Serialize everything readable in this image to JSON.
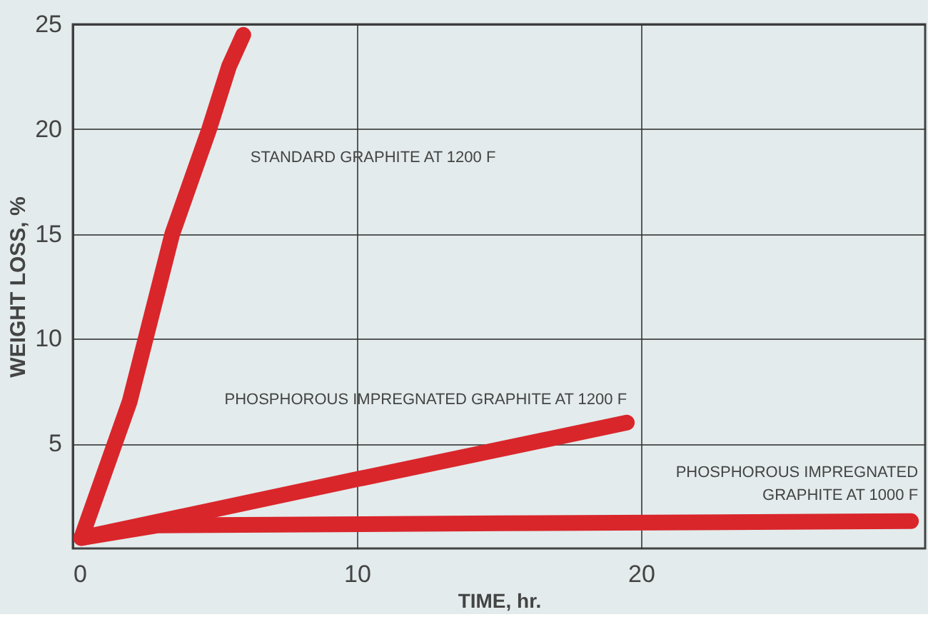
{
  "chart_data": {
    "type": "line",
    "xlabel": "TIME, hr.",
    "ylabel": "WEIGHT LOSS, %",
    "xlim": [
      0,
      30
    ],
    "ylim": [
      0,
      25
    ],
    "xticks": [
      0,
      10,
      20
    ],
    "yticks": [
      5,
      10,
      15,
      20,
      25
    ],
    "grid": true,
    "marker": "none",
    "line_style": "solid",
    "series": [
      {
        "name": "STANDARD GRAPHITE AT 1200 F",
        "color": "#d9262b",
        "x": [
          0.3,
          2,
          3.5,
          4.8,
          5.5,
          6
        ],
        "values": [
          0.5,
          7,
          15,
          20,
          23,
          24.5
        ]
      },
      {
        "name": "PHOSPHOROUS IMPREGNATED  GRAPHITE AT 1200 F",
        "color": "#d9262b",
        "x": [
          0.3,
          10,
          19.5
        ],
        "values": [
          0.5,
          3.3,
          6
        ]
      },
      {
        "name": "PHOSPHOROUS IMPREGNATED\nGRAPHITE AT 1000 F",
        "color": "#d9262b",
        "x": [
          0.3,
          3,
          15,
          29.5
        ],
        "values": [
          0.5,
          1.1,
          1.2,
          1.3
        ]
      }
    ]
  }
}
